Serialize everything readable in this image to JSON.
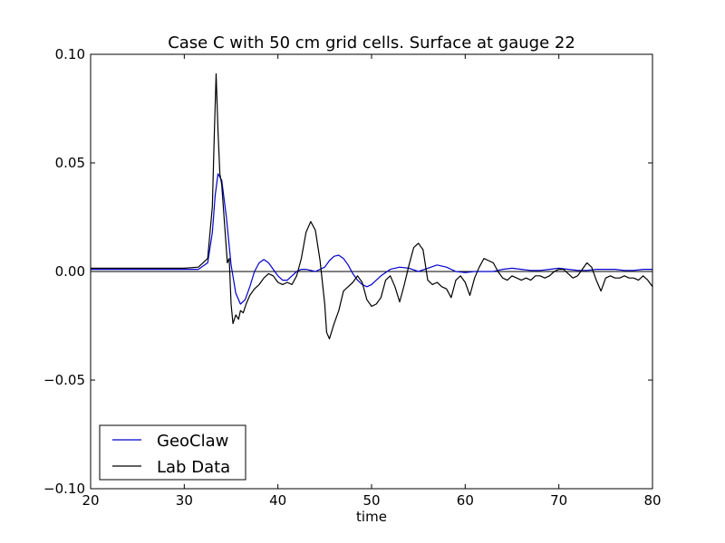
{
  "chart_data": {
    "type": "line",
    "title": "Case C with 50 cm grid cells.  Surface at gauge 22",
    "xlabel": "time",
    "ylabel": "",
    "xlim": [
      20,
      80
    ],
    "ylim": [
      -0.1,
      0.1
    ],
    "x_ticks": [
      "20",
      "30",
      "40",
      "50",
      "60",
      "70",
      "80"
    ],
    "y_ticks": [
      "−0.10",
      "−0.05",
      "0.00",
      "0.05",
      "0.10"
    ],
    "grid": false,
    "legend_position": "lower-left",
    "zero_line": true,
    "series": [
      {
        "name": "GeoClaw",
        "color": "#0000cc",
        "x": [
          20,
          25,
          30,
          31.5,
          32.5,
          33.0,
          33.3,
          33.6,
          34.0,
          34.5,
          35.0,
          35.5,
          36.0,
          36.5,
          37.0,
          37.5,
          38.0,
          38.5,
          39.0,
          39.5,
          40.0,
          40.5,
          41.0,
          41.5,
          42.0,
          42.5,
          43.0,
          44.0,
          45.0,
          45.5,
          46.0,
          46.5,
          47.0,
          47.5,
          48.0,
          48.5,
          49.0,
          49.5,
          50.0,
          51.0,
          52.0,
          53.0,
          54.0,
          55.0,
          56.0,
          57.0,
          58.0,
          59.0,
          60.0,
          61.0,
          62.0,
          63.0,
          64.0,
          65.0,
          66.0,
          67.0,
          68.0,
          69.0,
          70.0,
          71.0,
          72.0,
          73.0,
          74.0,
          75.0,
          76.0,
          77.0,
          78.0,
          79.0,
          80.0
        ],
        "values": [
          0.001,
          0.001,
          0.001,
          0.001,
          0.004,
          0.018,
          0.035,
          0.045,
          0.042,
          0.025,
          0.003,
          -0.01,
          -0.015,
          -0.013,
          -0.007,
          0.0,
          0.004,
          0.0055,
          0.004,
          0.001,
          -0.002,
          -0.004,
          -0.004,
          -0.002,
          0.0,
          0.001,
          0.001,
          0.0,
          0.002,
          0.005,
          0.007,
          0.0075,
          0.006,
          0.003,
          -0.001,
          -0.004,
          -0.006,
          -0.007,
          -0.006,
          -0.002,
          0.001,
          0.002,
          0.0015,
          0.0,
          0.0015,
          0.003,
          0.002,
          0.0,
          -0.0005,
          0.0,
          0.0,
          0.0,
          0.001,
          0.0015,
          0.001,
          0.0005,
          0.0005,
          0.001,
          0.0015,
          0.001,
          0.0005,
          0.0005,
          0.001,
          0.001,
          0.001,
          0.0005,
          0.0005,
          0.001,
          0.001
        ]
      },
      {
        "name": "Lab Data",
        "color": "#000000",
        "x": [
          20,
          25,
          30,
          31.5,
          32.5,
          33.0,
          33.2,
          33.4,
          33.6,
          33.8,
          34.0,
          34.3,
          34.6,
          34.8,
          35.0,
          35.2,
          35.5,
          35.8,
          36.0,
          36.3,
          36.6,
          37.0,
          37.5,
          38.0,
          38.5,
          39.0,
          39.5,
          40.0,
          40.5,
          41.0,
          41.5,
          42.0,
          42.5,
          43.0,
          43.5,
          44.0,
          44.5,
          45.0,
          45.2,
          45.5,
          46.0,
          46.5,
          47.0,
          47.5,
          48.0,
          48.5,
          49.0,
          49.5,
          50.0,
          50.5,
          51.0,
          51.5,
          52.0,
          52.5,
          53.0,
          53.5,
          54.0,
          54.5,
          55.0,
          55.5,
          56.0,
          56.5,
          57.0,
          57.5,
          58.0,
          58.5,
          59.0,
          59.5,
          60.0,
          60.5,
          61.0,
          61.5,
          62.0,
          62.5,
          63.0,
          63.5,
          64.0,
          64.5,
          65.0,
          65.5,
          66.0,
          66.5,
          67.0,
          67.5,
          68.0,
          68.5,
          69.0,
          69.5,
          70.0,
          70.5,
          71.0,
          71.5,
          72.0,
          72.5,
          73.0,
          73.5,
          74.0,
          74.5,
          75.0,
          75.5,
          76.0,
          76.5,
          77.0,
          77.5,
          78.0,
          78.5,
          79.0,
          79.5,
          80.0
        ],
        "values": [
          0.0015,
          0.0015,
          0.0015,
          0.002,
          0.006,
          0.03,
          0.062,
          0.091,
          0.065,
          0.045,
          0.04,
          0.022,
          0.004,
          0.006,
          -0.015,
          -0.024,
          -0.02,
          -0.022,
          -0.018,
          -0.019,
          -0.015,
          -0.011,
          -0.008,
          -0.006,
          -0.003,
          -0.001,
          -0.002,
          -0.005,
          -0.006,
          -0.005,
          -0.006,
          -0.002,
          0.006,
          0.018,
          0.023,
          0.019,
          0.005,
          -0.015,
          -0.028,
          -0.031,
          -0.024,
          -0.018,
          -0.009,
          -0.007,
          -0.005,
          -0.002,
          -0.005,
          -0.013,
          -0.016,
          -0.015,
          -0.012,
          -0.004,
          -0.002,
          -0.007,
          -0.014,
          -0.006,
          0.003,
          0.011,
          0.013,
          0.01,
          -0.004,
          -0.006,
          -0.005,
          -0.007,
          -0.008,
          -0.012,
          -0.004,
          -0.002,
          -0.005,
          -0.011,
          -0.003,
          0.002,
          0.006,
          0.005,
          0.004,
          0.0,
          -0.003,
          -0.004,
          -0.002,
          -0.003,
          -0.004,
          -0.003,
          -0.004,
          -0.002,
          -0.002,
          -0.003,
          -0.002,
          0.0,
          0.001,
          0.001,
          -0.001,
          -0.003,
          -0.002,
          0.001,
          0.004,
          0.002,
          -0.004,
          -0.009,
          -0.003,
          -0.002,
          -0.003,
          -0.003,
          -0.002,
          -0.003,
          -0.003,
          -0.004,
          -0.002,
          -0.004,
          -0.007
        ]
      }
    ]
  }
}
